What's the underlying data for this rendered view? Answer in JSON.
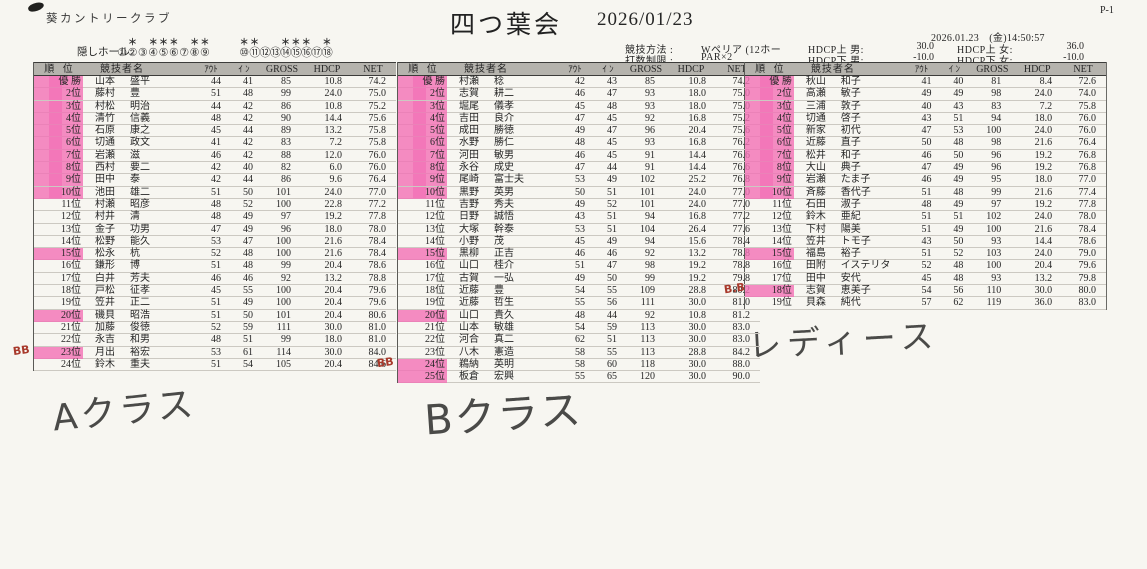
{
  "page": {
    "club": "葵カントリークラブ",
    "title": "四つ葉会",
    "date": "2026/01/23",
    "page_no": "P-1",
    "printed": "2026.01.23　(金)14:50:57"
  },
  "hidden_holes": {
    "label": "隠しホール:",
    "front": {
      "circles": [
        "①",
        "②",
        "③",
        "④",
        "⑤",
        "⑥",
        "⑦",
        "⑧",
        "⑨"
      ],
      "starred": [
        0,
        1,
        0,
        1,
        1,
        1,
        0,
        1,
        1
      ]
    },
    "back": {
      "circles": [
        "⑩",
        "⑪",
        "⑫",
        "⑬",
        "⑭",
        "⑮",
        "⑯",
        "⑰",
        "⑱"
      ],
      "starred": [
        1,
        1,
        0,
        0,
        1,
        1,
        1,
        0,
        1
      ]
    },
    "star_glyph": "＊"
  },
  "meta": {
    "method_label": "競技方法 :",
    "method_value": "Wペリア (12ホー",
    "limit_label": "打数制限 :",
    "limit_value": "PAR×2",
    "hdcp_items": [
      {
        "label": "HDCP上 男:",
        "value": "30.0"
      },
      {
        "label": "HDCP下 男:",
        "value": "-10.0"
      },
      {
        "label": "HDCP上 女:",
        "value": "36.0"
      },
      {
        "label": "HDCP下 女:",
        "value": "-10.0"
      }
    ]
  },
  "table_columns": [
    "順 位",
    "競技者名",
    "ｱｳﾄ",
    "ｲ ﾝ",
    "GROSS",
    "HDCP",
    "NET"
  ],
  "colors": {
    "highlight_pink": "#f270b5",
    "header_gray": "#b5b3ad",
    "bb_red": "#a8392b"
  },
  "tables": [
    {
      "id": "a",
      "handwritten_label": "Aクラス",
      "rows": [
        [
          "優 勝",
          "山本",
          "盛平",
          "44",
          "41",
          "85",
          "10.8",
          "74.2",
          1,
          ""
        ],
        [
          "2位",
          "藤村",
          "豊",
          "51",
          "48",
          "99",
          "24.0",
          "75.0",
          1,
          ""
        ],
        [
          "3位",
          "村松",
          "明治",
          "44",
          "42",
          "86",
          "10.8",
          "75.2",
          1,
          ""
        ],
        [
          "4位",
          "清竹",
          "信義",
          "48",
          "42",
          "90",
          "14.4",
          "75.6",
          1,
          ""
        ],
        [
          "5位",
          "石原",
          "康之",
          "45",
          "44",
          "89",
          "13.2",
          "75.8",
          1,
          ""
        ],
        [
          "6位",
          "切通",
          "政文",
          "41",
          "42",
          "83",
          "7.2",
          "75.8",
          1,
          ""
        ],
        [
          "7位",
          "岩瀬",
          "滋",
          "46",
          "42",
          "88",
          "12.0",
          "76.0",
          1,
          ""
        ],
        [
          "8位",
          "西村",
          "要二",
          "42",
          "40",
          "82",
          "6.0",
          "76.0",
          1,
          ""
        ],
        [
          "9位",
          "田中",
          "泰",
          "42",
          "44",
          "86",
          "9.6",
          "76.4",
          1,
          ""
        ],
        [
          "10位",
          "池田",
          "雄二",
          "51",
          "50",
          "101",
          "24.0",
          "77.0",
          1,
          ""
        ],
        [
          "11位",
          "村瀬",
          "昭彦",
          "48",
          "52",
          "100",
          "22.8",
          "77.2",
          0,
          ""
        ],
        [
          "12位",
          "村井",
          "清",
          "48",
          "49",
          "97",
          "19.2",
          "77.8",
          0,
          ""
        ],
        [
          "13位",
          "金子",
          "功男",
          "47",
          "49",
          "96",
          "18.0",
          "78.0",
          0,
          ""
        ],
        [
          "14位",
          "松野",
          "能久",
          "53",
          "47",
          "100",
          "21.6",
          "78.4",
          0,
          ""
        ],
        [
          "15位",
          "松永",
          "杭",
          "52",
          "48",
          "100",
          "21.6",
          "78.4",
          1,
          ""
        ],
        [
          "16位",
          "鎌形",
          "博",
          "51",
          "48",
          "99",
          "20.4",
          "78.6",
          0,
          ""
        ],
        [
          "17位",
          "白井",
          "芳夫",
          "46",
          "46",
          "92",
          "13.2",
          "78.8",
          0,
          ""
        ],
        [
          "18位",
          "戸松",
          "征孝",
          "45",
          "55",
          "100",
          "20.4",
          "79.6",
          0,
          ""
        ],
        [
          "19位",
          "笠井",
          "正二",
          "51",
          "49",
          "100",
          "20.4",
          "79.6",
          0,
          ""
        ],
        [
          "20位",
          "磯貝",
          "昭浩",
          "51",
          "50",
          "101",
          "20.4",
          "80.6",
          1,
          ""
        ],
        [
          "21位",
          "加藤",
          "俊徳",
          "52",
          "59",
          "111",
          "30.0",
          "81.0",
          0,
          ""
        ],
        [
          "22位",
          "永吉",
          "和男",
          "48",
          "51",
          "99",
          "18.0",
          "81.0",
          0,
          ""
        ],
        [
          "23位",
          "月出",
          "裕宏",
          "53",
          "61",
          "114",
          "30.0",
          "84.0",
          1,
          "BB"
        ],
        [
          "24位",
          "鈴木",
          "重夫",
          "51",
          "54",
          "105",
          "20.4",
          "84.6",
          0,
          ""
        ]
      ]
    },
    {
      "id": "b",
      "handwritten_label": "Bクラス",
      "rows": [
        [
          "優 勝",
          "村瀬",
          "稔",
          "42",
          "43",
          "85",
          "10.8",
          "74.2",
          1,
          ""
        ],
        [
          "2位",
          "志賀",
          "耕二",
          "46",
          "47",
          "93",
          "18.0",
          "75.0",
          1,
          ""
        ],
        [
          "3位",
          "堀尾",
          "儀孝",
          "45",
          "48",
          "93",
          "18.0",
          "75.0",
          1,
          ""
        ],
        [
          "4位",
          "吉田",
          "良介",
          "47",
          "45",
          "92",
          "16.8",
          "75.2",
          1,
          ""
        ],
        [
          "5位",
          "成田",
          "勝徳",
          "49",
          "47",
          "96",
          "20.4",
          "75.6",
          1,
          ""
        ],
        [
          "6位",
          "水野",
          "勝仁",
          "48",
          "45",
          "93",
          "16.8",
          "76.2",
          1,
          ""
        ],
        [
          "7位",
          "河田",
          "敏男",
          "46",
          "45",
          "91",
          "14.4",
          "76.6",
          1,
          ""
        ],
        [
          "8位",
          "永谷",
          "成史",
          "47",
          "44",
          "91",
          "14.4",
          "76.6",
          1,
          ""
        ],
        [
          "9位",
          "尾崎",
          "富士夫",
          "53",
          "49",
          "102",
          "25.2",
          "76.8",
          1,
          ""
        ],
        [
          "10位",
          "黒野",
          "英男",
          "50",
          "51",
          "101",
          "24.0",
          "77.0",
          1,
          ""
        ],
        [
          "11位",
          "吉野",
          "秀夫",
          "49",
          "52",
          "101",
          "24.0",
          "77.0",
          0,
          ""
        ],
        [
          "12位",
          "日野",
          "誠悟",
          "43",
          "51",
          "94",
          "16.8",
          "77.2",
          0,
          ""
        ],
        [
          "13位",
          "大塚",
          "幹泰",
          "53",
          "51",
          "104",
          "26.4",
          "77.6",
          0,
          ""
        ],
        [
          "14位",
          "小野",
          "茂",
          "45",
          "49",
          "94",
          "15.6",
          "78.4",
          0,
          ""
        ],
        [
          "15位",
          "黒柳",
          "正吉",
          "46",
          "46",
          "92",
          "13.2",
          "78.8",
          1,
          ""
        ],
        [
          "16位",
          "山口",
          "桂介",
          "51",
          "47",
          "98",
          "19.2",
          "78.8",
          0,
          ""
        ],
        [
          "17位",
          "古賀",
          "一弘",
          "49",
          "50",
          "99",
          "19.2",
          "79.8",
          0,
          ""
        ],
        [
          "18位",
          "近藤",
          "豊",
          "54",
          "55",
          "109",
          "28.8",
          "80.2",
          0,
          ""
        ],
        [
          "19位",
          "近藤",
          "哲生",
          "55",
          "56",
          "111",
          "30.0",
          "81.0",
          0,
          ""
        ],
        [
          "20位",
          "山口",
          "貴久",
          "48",
          "44",
          "92",
          "10.8",
          "81.2",
          1,
          ""
        ],
        [
          "21位",
          "山本",
          "敏雄",
          "54",
          "59",
          "113",
          "30.0",
          "83.0",
          0,
          ""
        ],
        [
          "22位",
          "河合",
          "真二",
          "62",
          "51",
          "113",
          "30.0",
          "83.0",
          0,
          ""
        ],
        [
          "23位",
          "八木",
          "憲造",
          "58",
          "55",
          "113",
          "28.8",
          "84.2",
          0,
          ""
        ],
        [
          "24位",
          "鵜納",
          "英明",
          "58",
          "60",
          "118",
          "30.0",
          "88.0",
          1,
          "BB"
        ],
        [
          "25位",
          "板倉",
          "宏興",
          "55",
          "65",
          "120",
          "30.0",
          "90.0",
          1,
          ""
        ]
      ]
    },
    {
      "id": "l",
      "handwritten_label": "レディース",
      "rows": [
        [
          "優 勝",
          "秋山",
          "和子",
          "41",
          "40",
          "81",
          "8.4",
          "72.6",
          1,
          ""
        ],
        [
          "2位",
          "高瀬",
          "敏子",
          "49",
          "49",
          "98",
          "24.0",
          "74.0",
          1,
          ""
        ],
        [
          "3位",
          "三浦",
          "敦子",
          "40",
          "43",
          "83",
          "7.2",
          "75.8",
          1,
          ""
        ],
        [
          "4位",
          "切通",
          "啓子",
          "43",
          "51",
          "94",
          "18.0",
          "76.0",
          1,
          ""
        ],
        [
          "5位",
          "新家",
          "初代",
          "47",
          "53",
          "100",
          "24.0",
          "76.0",
          1,
          ""
        ],
        [
          "6位",
          "近藤",
          "直子",
          "50",
          "48",
          "98",
          "21.6",
          "76.4",
          1,
          ""
        ],
        [
          "7位",
          "松井",
          "和子",
          "46",
          "50",
          "96",
          "19.2",
          "76.8",
          1,
          ""
        ],
        [
          "8位",
          "大山",
          "典子",
          "47",
          "49",
          "96",
          "19.2",
          "76.8",
          1,
          ""
        ],
        [
          "9位",
          "岩瀬",
          "たま子",
          "46",
          "49",
          "95",
          "18.0",
          "77.0",
          1,
          ""
        ],
        [
          "10位",
          "斉藤",
          "香代子",
          "51",
          "48",
          "99",
          "21.6",
          "77.4",
          1,
          ""
        ],
        [
          "11位",
          "石田",
          "淑子",
          "48",
          "49",
          "97",
          "19.2",
          "77.8",
          0,
          ""
        ],
        [
          "12位",
          "鈴木",
          "亜紀",
          "51",
          "51",
          "102",
          "24.0",
          "78.0",
          0,
          ""
        ],
        [
          "13位",
          "下村",
          "陽美",
          "51",
          "49",
          "100",
          "21.6",
          "78.4",
          0,
          ""
        ],
        [
          "14位",
          "笠井",
          "トモ子",
          "43",
          "50",
          "93",
          "14.4",
          "78.6",
          0,
          ""
        ],
        [
          "15位",
          "福島",
          "裕子",
          "51",
          "52",
          "103",
          "24.0",
          "79.0",
          1,
          ""
        ],
        [
          "16位",
          "田附",
          "イステリタ",
          "52",
          "48",
          "100",
          "20.4",
          "79.6",
          0,
          ""
        ],
        [
          "17位",
          "田中",
          "安代",
          "45",
          "48",
          "93",
          "13.2",
          "79.8",
          0,
          ""
        ],
        [
          "18位",
          "志賀",
          "恵美子",
          "54",
          "56",
          "110",
          "30.0",
          "80.0",
          1,
          "B.B"
        ],
        [
          "19位",
          "貝森",
          "純代",
          "57",
          "62",
          "119",
          "36.0",
          "83.0",
          0,
          ""
        ]
      ]
    }
  ]
}
